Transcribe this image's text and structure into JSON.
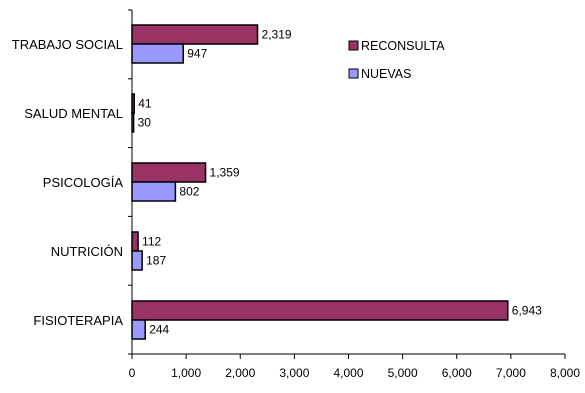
{
  "chart_data": {
    "type": "bar",
    "orientation": "horizontal",
    "categories": [
      "TRABAJO SOCIAL",
      "SALUD MENTAL",
      "PSICOLOGÍA",
      "NUTRICIÓN",
      "FISIOTERAPIA"
    ],
    "series": [
      {
        "name": "RECONSULTA",
        "values": [
          2319,
          41,
          1359,
          112,
          6943
        ],
        "labels": [
          "2,319",
          "41",
          "1,359",
          "112",
          "6,943"
        ],
        "color": "#993366"
      },
      {
        "name": "NUEVAS",
        "values": [
          947,
          30,
          802,
          187,
          244
        ],
        "labels": [
          "947",
          "30",
          "802",
          "187",
          "244"
        ],
        "color": "#9999ff"
      }
    ],
    "xlim": [
      0,
      8000
    ],
    "xticks": [
      "0",
      "1,000",
      "2,000",
      "3,000",
      "4,000",
      "5,000",
      "6,000",
      "7,000",
      "8,000"
    ],
    "legend_position": "top-right",
    "grid": false
  }
}
